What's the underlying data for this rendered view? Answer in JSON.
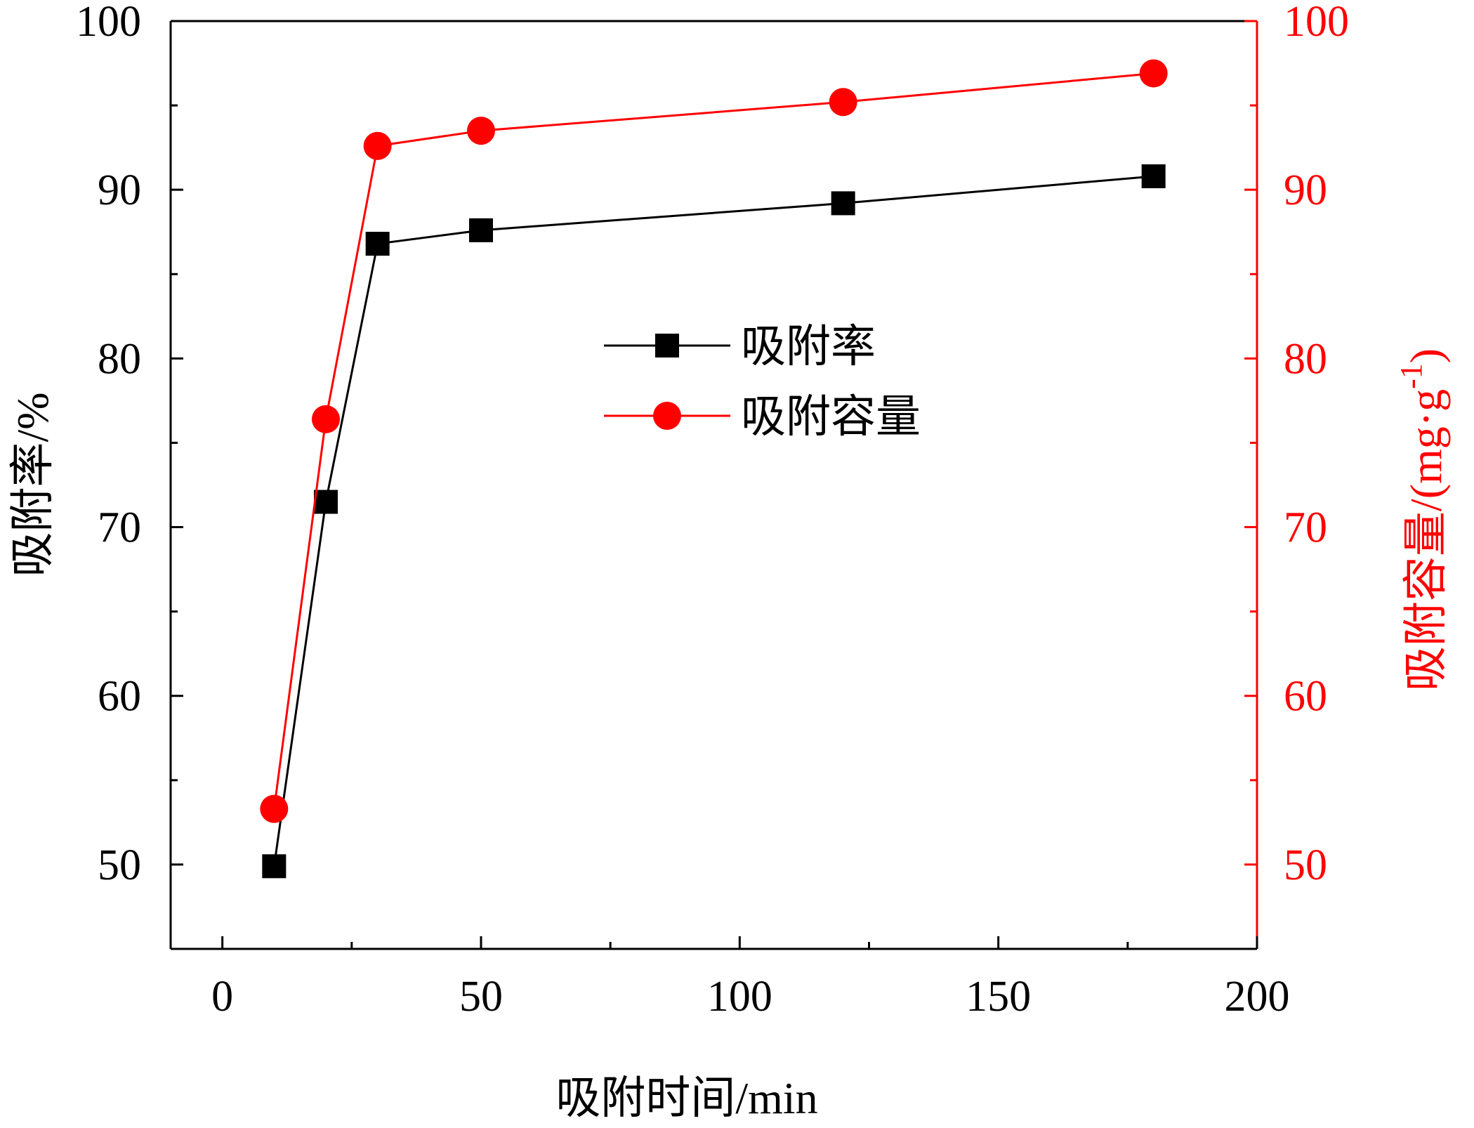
{
  "chart_data": {
    "type": "line",
    "xlabel": "吸附时间/min",
    "ylabel_left": "吸附率/%",
    "ylabel_right_main": "吸附容量/(mg·g",
    "ylabel_right_sup": "-1",
    "ylabel_right_close": ")",
    "xlim": [
      -10,
      200
    ],
    "ylim_left": [
      45,
      100
    ],
    "ylim_right": [
      45,
      100
    ],
    "x_ticks": [
      0,
      50,
      100,
      150,
      200
    ],
    "x_tick_labels": [
      "0",
      "50",
      "100",
      "150",
      "200"
    ],
    "y_ticks": [
      50,
      60,
      70,
      80,
      90,
      100
    ],
    "y_tick_labels_left": [
      "50",
      "60",
      "70",
      "80",
      "90",
      "100"
    ],
    "y_tick_labels_right": [
      "50",
      "60",
      "70",
      "80",
      "90",
      "100"
    ],
    "grid": false,
    "legend_position": "center",
    "series": [
      {
        "name": "吸附率",
        "axis": "left",
        "color": "#000000",
        "marker": "square",
        "x": [
          10,
          20,
          30,
          50,
          120,
          180
        ],
        "y": [
          49.9,
          71.5,
          86.8,
          87.6,
          89.2,
          90.8
        ]
      },
      {
        "name": "吸附容量",
        "axis": "right",
        "color": "#ff0000",
        "marker": "circle",
        "x": [
          10,
          20,
          30,
          50,
          120,
          180
        ],
        "y": [
          53.3,
          76.4,
          92.6,
          93.5,
          95.2,
          96.9
        ]
      }
    ]
  }
}
